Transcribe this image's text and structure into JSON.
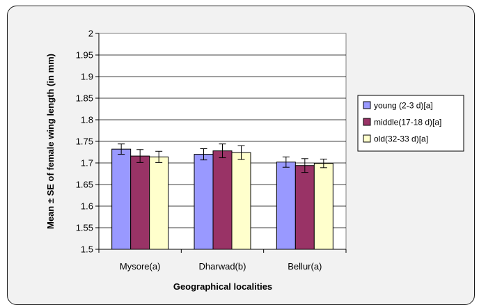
{
  "chart_data": {
    "type": "bar",
    "title": "",
    "xlabel": "Geographical localities",
    "ylabel": "Mean ± SE of female wing length (in mm)",
    "ylim": [
      1.5,
      2.0
    ],
    "yticks": [
      "2",
      "1.95",
      "1.9",
      "1.85",
      "1.8",
      "1.75",
      "1.7",
      "1.65",
      "1.6",
      "1.55",
      "1.5"
    ],
    "categories": [
      "Mysore(a)",
      "Dharwad(b)",
      "Bellur(a)"
    ],
    "series": [
      {
        "name": "young (2-3 d)[a]",
        "color": "#9999ff",
        "values": [
          1.732,
          1.72,
          1.702
        ],
        "errors": [
          0.012,
          0.013,
          0.012
        ]
      },
      {
        "name": "middle(17-18 d)[a]",
        "color": "#993366",
        "values": [
          1.716,
          1.728,
          1.694
        ],
        "errors": [
          0.015,
          0.016,
          0.016
        ]
      },
      {
        "name": "old(32-33 d)[a]",
        "color": "#ffffcc",
        "values": [
          1.714,
          1.724,
          1.699
        ],
        "errors": [
          0.013,
          0.016,
          0.01
        ]
      }
    ],
    "grid": true,
    "legend_position": "right"
  }
}
